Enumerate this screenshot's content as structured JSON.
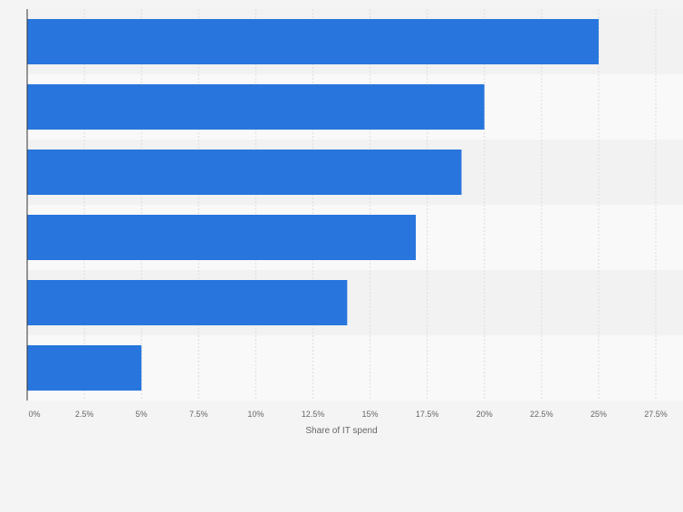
{
  "chart_data": {
    "type": "bar",
    "orientation": "horizontal",
    "categories": [
      "",
      "",
      "",
      "",
      "",
      ""
    ],
    "values": [
      25,
      20,
      19,
      17,
      14,
      5
    ],
    "title": "",
    "xlabel": "Share of IT spend",
    "ylabel": "",
    "xlim": [
      0,
      27.5
    ],
    "ticks": [
      0,
      2.5,
      5,
      7.5,
      10,
      12.5,
      15,
      17.5,
      20,
      22.5,
      25,
      27.5
    ],
    "tick_labels": [
      "0%",
      "2.5%",
      "5%",
      "7.5%",
      "10%",
      "12.5%",
      "15%",
      "17.5%",
      "20%",
      "22.5%",
      "25%",
      "27.5%"
    ],
    "grid": true,
    "bar_color": "#2876dd",
    "band_colors": [
      "#f2f2f2",
      "#f9f9f9"
    ],
    "grid_color": "#dcdcdc",
    "axis_color": "#333333",
    "label_color": "#666666"
  }
}
